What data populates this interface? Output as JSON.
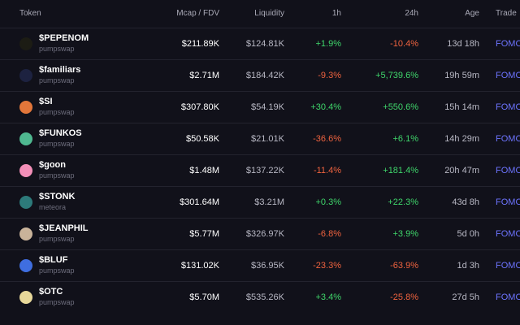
{
  "table": {
    "headers": {
      "token": "Token",
      "mcap": "Mcap / FDV",
      "liquidity": "Liquidity",
      "h1": "1h",
      "h24": "24h",
      "age": "Age",
      "trade": "Trade"
    },
    "rows": [
      {
        "symbol": "$PEPENOM",
        "venue": "pumpswap",
        "mcap": "$211.89K",
        "liquidity": "$124.81K",
        "h1": "+1.9%",
        "h1_dir": "pos",
        "h24": "-10.4%",
        "h24_dir": "neg",
        "age": "13d 18h",
        "trade": "FOMO",
        "avatar_icon": "frog-avatar-icon",
        "avatar_color": "#1c1c14"
      },
      {
        "symbol": "$familiars",
        "venue": "pumpswap",
        "mcap": "$2.71M",
        "liquidity": "$184.42K",
        "h1": "-9.3%",
        "h1_dir": "neg",
        "h24": "+5,739.6%",
        "h24_dir": "pos",
        "age": "19h 59m",
        "trade": "FOMO",
        "avatar_icon": "creature-avatar-icon",
        "avatar_color": "#1d2240"
      },
      {
        "symbol": "$SI",
        "venue": "pumpswap",
        "mcap": "$307.80K",
        "liquidity": "$54.19K",
        "h1": "+30.4%",
        "h1_dir": "pos",
        "h24": "+550.6%",
        "h24_dir": "pos",
        "age": "15h 14m",
        "trade": "FOMO",
        "avatar_icon": "sunset-avatar-icon",
        "avatar_color": "#e2763a"
      },
      {
        "symbol": "$FUNKOS",
        "venue": "pumpswap",
        "mcap": "$50.58K",
        "liquidity": "$21.01K",
        "h1": "-36.6%",
        "h1_dir": "neg",
        "h24": "+6.1%",
        "h24_dir": "pos",
        "age": "14h 29m",
        "trade": "FOMO",
        "avatar_icon": "letter-f-avatar-icon",
        "avatar_color": "#4fb890"
      },
      {
        "symbol": "$goon",
        "venue": "pumpswap",
        "mcap": "$1.48M",
        "liquidity": "$137.22K",
        "h1": "-11.4%",
        "h1_dir": "neg",
        "h24": "+181.4%",
        "h24_dir": "pos",
        "age": "20h 47m",
        "trade": "FOMO",
        "avatar_icon": "pink-blob-avatar-icon",
        "avatar_color": "#f38fb8"
      },
      {
        "symbol": "$STONK",
        "venue": "meteora",
        "mcap": "$301.64M",
        "liquidity": "$3.21M",
        "h1": "+0.3%",
        "h1_dir": "pos",
        "h24": "+22.3%",
        "h24_dir": "pos",
        "age": "43d 8h",
        "trade": "FOMO",
        "avatar_icon": "stonk-avatar-icon",
        "avatar_color": "#2d7a7a"
      },
      {
        "symbol": "$JEANPHIL",
        "venue": "pumpswap",
        "mcap": "$5.77M",
        "liquidity": "$326.97K",
        "h1": "-6.8%",
        "h1_dir": "neg",
        "h24": "+3.9%",
        "h24_dir": "pos",
        "age": "5d 0h",
        "trade": "FOMO",
        "avatar_icon": "portrait-avatar-icon",
        "avatar_color": "#c9b39a"
      },
      {
        "symbol": "$BLUF",
        "venue": "pumpswap",
        "mcap": "$131.02K",
        "liquidity": "$36.95K",
        "h1": "-23.3%",
        "h1_dir": "neg",
        "h24": "-63.9%",
        "h24_dir": "neg",
        "age": "1d 3h",
        "trade": "FOMO",
        "avatar_icon": "blue-face-avatar-icon",
        "avatar_color": "#3f6ee0"
      },
      {
        "symbol": "$OTC",
        "venue": "pumpswap",
        "mcap": "$5.70M",
        "liquidity": "$535.26K",
        "h1": "+3.4%",
        "h1_dir": "pos",
        "h24": "-25.8%",
        "h24_dir": "neg",
        "age": "27d 5h",
        "trade": "FOMO",
        "avatar_icon": "otc-avatar-icon",
        "avatar_color": "#e8d89a"
      }
    ]
  },
  "colors": {
    "background": "#11111a",
    "positive": "#3fd66b",
    "negative": "#f0633f",
    "trade_link": "#6d74ff"
  }
}
